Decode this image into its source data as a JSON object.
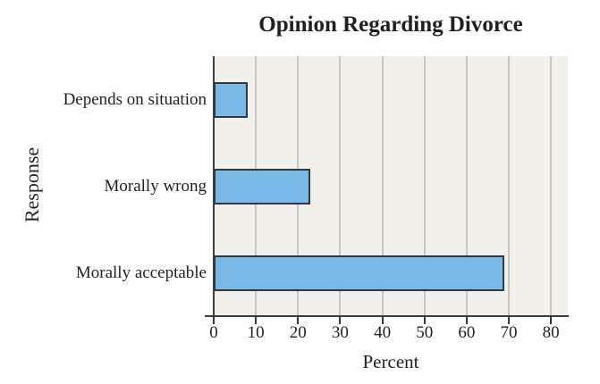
{
  "chart_data": {
    "type": "bar",
    "orientation": "horizontal",
    "title": "Opinion Regarding Divorce",
    "xlabel": "Percent",
    "ylabel": "Response",
    "categories": [
      "Depends on situation",
      "Morally wrong",
      "Morally acceptable"
    ],
    "values": [
      8,
      23,
      69
    ],
    "xlim": [
      0,
      84
    ],
    "xticks": [
      0,
      10,
      20,
      30,
      40,
      50,
      60,
      70,
      80
    ],
    "grid": true,
    "legend": false,
    "colors": {
      "bar_fill": "#79b9e5",
      "bar_border": "#35353d",
      "plot_bg": "#f2f0ea",
      "gridline": "#c8c7c3",
      "axis": "#3a3a40",
      "text": "#231f20",
      "page_bg": "#ffffff"
    }
  }
}
